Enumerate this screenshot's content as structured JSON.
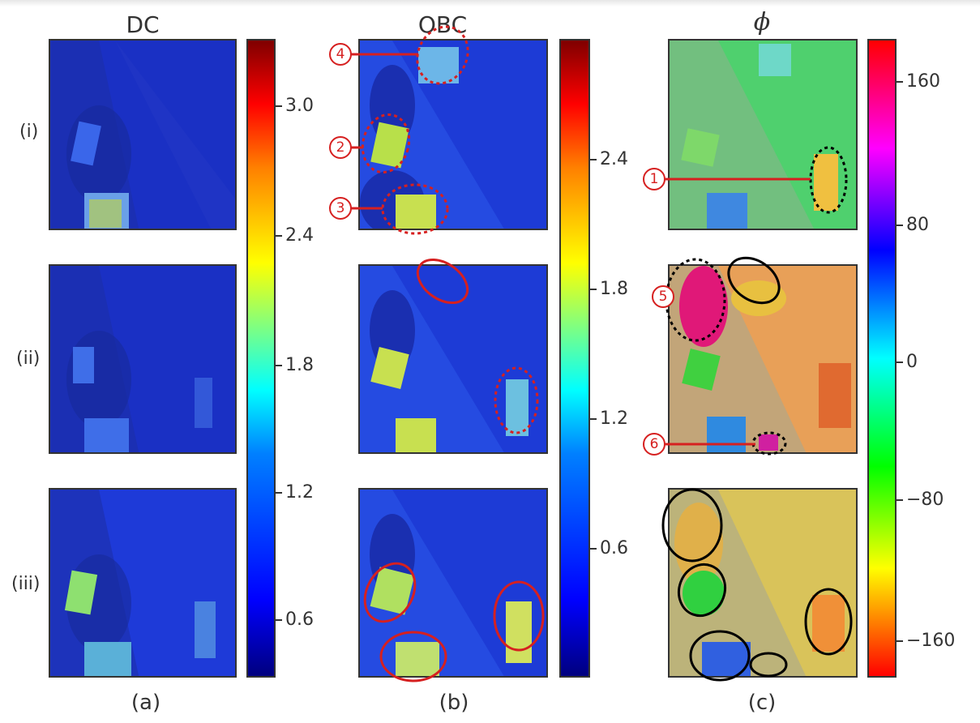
{
  "columns": {
    "a": {
      "title": "DC",
      "sublabel": "(a)"
    },
    "b": {
      "title": "OBC",
      "sublabel": "(b)"
    },
    "c": {
      "title": "ϕ",
      "sublabel": "(c)"
    }
  },
  "rows": [
    "(i)",
    "(ii)",
    "(iii)"
  ],
  "colorbars": {
    "dc": {
      "colormap": "jet",
      "ticks": [
        "3.0",
        "2.4",
        "1.8",
        "1.2",
        "0.6"
      ]
    },
    "obc": {
      "colormap": "jet",
      "ticks": [
        "2.4",
        "1.8",
        "1.2",
        "0.6"
      ]
    },
    "phi": {
      "colormap": "hsv",
      "ticks": [
        "160",
        "80",
        "0",
        "−80",
        "−160"
      ]
    }
  },
  "markers": [
    "1",
    "2",
    "3",
    "4",
    "5",
    "6"
  ],
  "colors": {
    "annotation_red": "#d62020",
    "annotation_black": "#000000",
    "panel_bg_dark_blue": "#1a2fc8",
    "phi_green": "#5fd65a",
    "phi_orange": "#e8a050",
    "phi_yellow": "#d9c35a"
  }
}
